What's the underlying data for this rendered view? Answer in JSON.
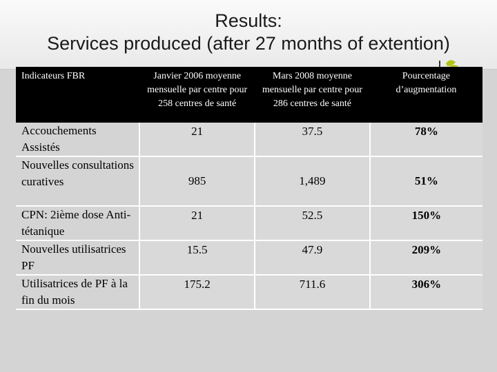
{
  "slide": {
    "title_line1": "Results:",
    "title_line2": "Services produced (after 27 months of extention)"
  },
  "table": {
    "headers": [
      "Indicateurs FBR",
      "Janvier 2006 moyenne mensuelle par centre pour 258 centres de santé",
      "Mars 2008 moyenne mensuelle par centre pour 286 centres de santé",
      "Pourcentage d’augmentation"
    ],
    "rows": [
      {
        "indicator": "Accouchements Assistés",
        "jan2006": "21",
        "mar2008": "37.5",
        "pct": "78%"
      },
      {
        "indicator": "Nouvelles consultations curatives",
        "jan2006": "985",
        "mar2008": "1,489",
        "pct": "51%"
      },
      {
        "indicator": "CPN: 2ième dose Anti-tétanique",
        "jan2006": "21",
        "mar2008": "52.5",
        "pct": "150%"
      },
      {
        "indicator": "Nouvelles utilisatrices PF",
        "jan2006": "15.5",
        "mar2008": "47.9",
        "pct": "209%"
      },
      {
        "indicator": "Utilisatrices de PF à la fin du mois",
        "jan2006": "175.2",
        "mar2008": "711.6",
        "pct": "306%"
      }
    ]
  },
  "colors": {
    "header_bg": "#000000",
    "cell_bg": "#d9d9d9",
    "logo_green": "#b5c316"
  }
}
